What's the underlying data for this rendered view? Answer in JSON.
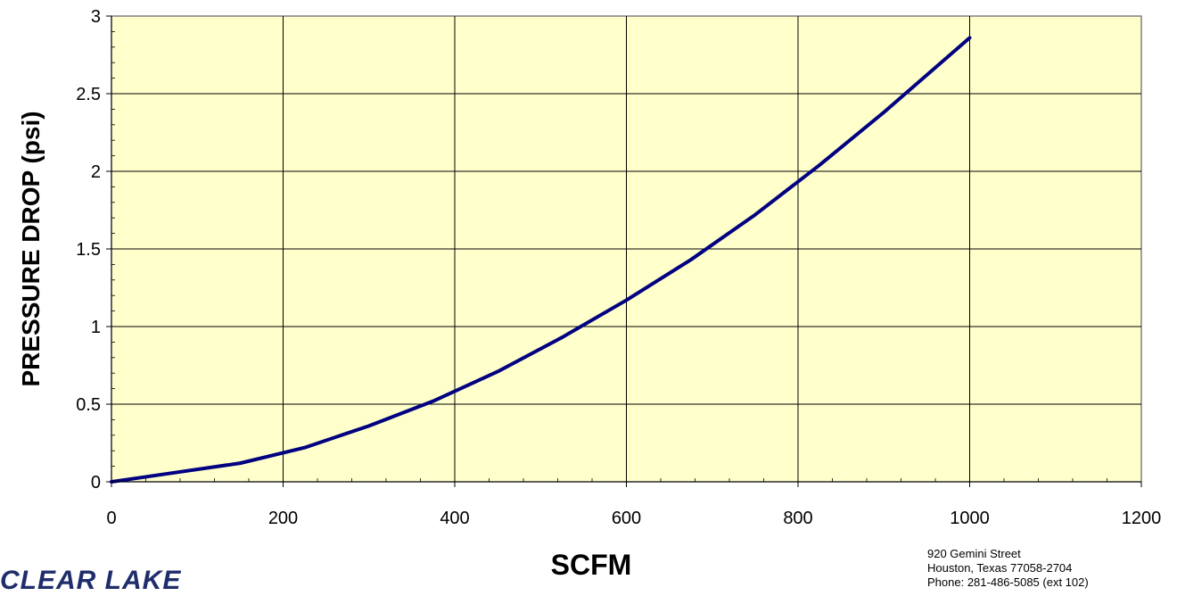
{
  "chart_data": {
    "type": "line",
    "title": "",
    "xlabel": "SCFM",
    "ylabel": "PRESSURE DROP (psi)",
    "xlim": [
      0,
      1200
    ],
    "ylim": [
      0,
      3
    ],
    "x_ticks": [
      "0",
      "200",
      "400",
      "600",
      "800",
      "1000",
      "1200"
    ],
    "y_ticks": [
      "0",
      "0.5",
      "1",
      "1.5",
      "2",
      "2.5",
      "3"
    ],
    "grid": true,
    "plot_background": "#ffffcc",
    "series": [
      {
        "color": "#000080",
        "x": [
          0,
          75,
          150,
          225,
          300,
          375,
          450,
          525,
          600,
          675,
          750,
          825,
          900,
          1000
        ],
        "y": [
          0,
          0.06,
          0.12,
          0.22,
          0.36,
          0.52,
          0.71,
          0.93,
          1.17,
          1.43,
          1.72,
          2.04,
          2.38,
          2.86
        ]
      }
    ]
  },
  "footer": {
    "logo_text": "CLEAR LAKE",
    "address_line1": "920 Gemini Street",
    "address_line2": "Houston, Texas  77058-2704",
    "address_line3": "Phone:  281-486-5085  (ext 102)"
  }
}
